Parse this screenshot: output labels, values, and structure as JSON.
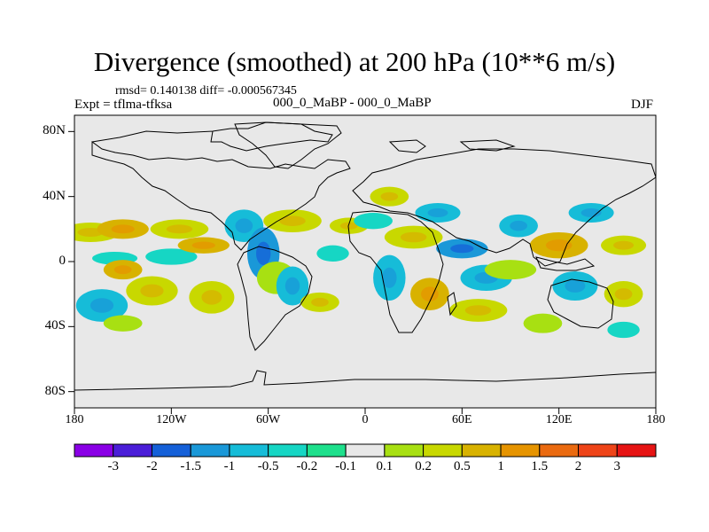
{
  "title": "Divergence (smoothed) at 200 hPa (10**6 m/s)",
  "stats": "rmsd= 0.140138 diff= -0.000567345",
  "expt": "Expt = tflma-tfksa",
  "case_id": "000_0_MaBP - 000_0_MaBP",
  "season": "DJF",
  "colors": {
    "background_field": "#e8e8e8",
    "frame": "#000000"
  },
  "chart_data": {
    "type": "heatmap",
    "projection": "cylindrical equidistant",
    "variable": "Divergence (smoothed) at 200 hPa",
    "units": "10**6 m/s",
    "lon_range": [
      -180,
      180
    ],
    "lat_range": [
      -90,
      90
    ],
    "y_ticks": [
      {
        "value": 80,
        "label": "80N"
      },
      {
        "value": 40,
        "label": "40N"
      },
      {
        "value": 0,
        "label": "0"
      },
      {
        "value": -40,
        "label": "40S"
      },
      {
        "value": -80,
        "label": "80S"
      }
    ],
    "x_ticks": [
      {
        "value": -180,
        "label": "180"
      },
      {
        "value": -120,
        "label": "120W"
      },
      {
        "value": -60,
        "label": "60W"
      },
      {
        "value": 0,
        "label": "0"
      },
      {
        "value": 60,
        "label": "60E"
      },
      {
        "value": 120,
        "label": "120E"
      },
      {
        "value": 180,
        "label": "180"
      }
    ],
    "colorbar": {
      "colors": [
        "#8a00e6",
        "#4b1ed8",
        "#1560d8",
        "#1a98d8",
        "#16bcd8",
        "#16d6c4",
        "#1ee08c",
        "#e8e8e8",
        "#a8e012",
        "#c8d800",
        "#d8b200",
        "#e69400",
        "#ea6a10",
        "#ee4418",
        "#e61414"
      ],
      "labels": [
        "-3",
        "-2",
        "-1.5",
        "-1",
        "-0.5",
        "-0.2",
        "-0.1",
        "0.1",
        "0.2",
        "0.5",
        "1",
        "1.5",
        "2",
        "3"
      ]
    },
    "field_blobs": [
      {
        "lon": -170,
        "lat": 18,
        "r": [
          18,
          6
        ],
        "level": 0.5
      },
      {
        "lon": -150,
        "lat": 20,
        "r": [
          16,
          6
        ],
        "level": 1
      },
      {
        "lon": -115,
        "lat": 20,
        "r": [
          18,
          6
        ],
        "level": 0.5
      },
      {
        "lon": -155,
        "lat": 2,
        "r": [
          14,
          4
        ],
        "level": -0.2
      },
      {
        "lon": -120,
        "lat": 3,
        "r": [
          16,
          5
        ],
        "level": -0.2
      },
      {
        "lon": -163,
        "lat": -27,
        "r": [
          16,
          10
        ],
        "level": -0.5
      },
      {
        "lon": -132,
        "lat": -18,
        "r": [
          16,
          9
        ],
        "level": 0.5
      },
      {
        "lon": -95,
        "lat": -22,
        "r": [
          14,
          10
        ],
        "level": 0.5
      },
      {
        "lon": -150,
        "lat": -38,
        "r": [
          12,
          5
        ],
        "level": 0.2
      },
      {
        "lon": -150,
        "lat": -5,
        "r": [
          12,
          6
        ],
        "level": 1
      },
      {
        "lon": -100,
        "lat": 10,
        "r": [
          16,
          5
        ],
        "level": 1
      },
      {
        "lon": -75,
        "lat": 22,
        "r": [
          12,
          10
        ],
        "level": -0.5
      },
      {
        "lon": -63,
        "lat": 5,
        "r": [
          10,
          16
        ],
        "level": -1
      },
      {
        "lon": -55,
        "lat": -10,
        "r": [
          12,
          10
        ],
        "level": 0.2
      },
      {
        "lon": -45,
        "lat": 25,
        "r": [
          18,
          7
        ],
        "level": 0.5
      },
      {
        "lon": -45,
        "lat": -15,
        "r": [
          10,
          12
        ],
        "level": -0.5
      },
      {
        "lon": -20,
        "lat": 5,
        "r": [
          10,
          5
        ],
        "level": -0.2
      },
      {
        "lon": -10,
        "lat": 22,
        "r": [
          12,
          5
        ],
        "level": 0.5
      },
      {
        "lon": -28,
        "lat": -25,
        "r": [
          12,
          6
        ],
        "level": 0.5
      },
      {
        "lon": 15,
        "lat": 40,
        "r": [
          12,
          6
        ],
        "level": 0.5
      },
      {
        "lon": 5,
        "lat": 25,
        "r": [
          12,
          5
        ],
        "level": -0.2
      },
      {
        "lon": 15,
        "lat": -10,
        "r": [
          10,
          14
        ],
        "level": -0.5
      },
      {
        "lon": 30,
        "lat": 15,
        "r": [
          18,
          7
        ],
        "level": 0.5
      },
      {
        "lon": 45,
        "lat": 30,
        "r": [
          14,
          6
        ],
        "level": -0.5
      },
      {
        "lon": 40,
        "lat": -20,
        "r": [
          12,
          10
        ],
        "level": 1
      },
      {
        "lon": 60,
        "lat": 8,
        "r": [
          16,
          6
        ],
        "level": -1
      },
      {
        "lon": 75,
        "lat": -10,
        "r": [
          16,
          8
        ],
        "level": -0.5
      },
      {
        "lon": 95,
        "lat": 22,
        "r": [
          12,
          7
        ],
        "level": -0.5
      },
      {
        "lon": 90,
        "lat": -5,
        "r": [
          16,
          6
        ],
        "level": 0.2
      },
      {
        "lon": 70,
        "lat": -30,
        "r": [
          18,
          7
        ],
        "level": 0.5
      },
      {
        "lon": 120,
        "lat": 10,
        "r": [
          18,
          8
        ],
        "level": 1
      },
      {
        "lon": 140,
        "lat": 30,
        "r": [
          14,
          6
        ],
        "level": -0.5
      },
      {
        "lon": 130,
        "lat": -15,
        "r": [
          14,
          9
        ],
        "level": -0.5
      },
      {
        "lon": 160,
        "lat": 10,
        "r": [
          14,
          6
        ],
        "level": 0.5
      },
      {
        "lon": 160,
        "lat": -20,
        "r": [
          12,
          8
        ],
        "level": 0.5
      },
      {
        "lon": 110,
        "lat": -38,
        "r": [
          12,
          6
        ],
        "level": 0.2
      },
      {
        "lon": 160,
        "lat": -42,
        "r": [
          10,
          5
        ],
        "level": -0.2
      }
    ]
  }
}
